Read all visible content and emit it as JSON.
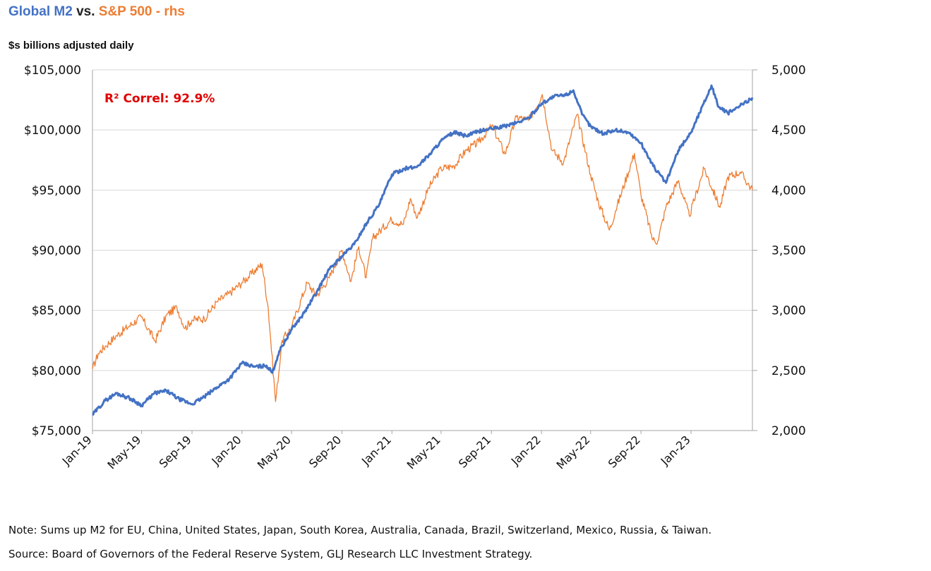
{
  "header": {
    "title_series1": "Global M2",
    "title_vs": "vs.",
    "title_series2": "S&P 500 - rhs",
    "subtitle": "$s billions adjusted daily"
  },
  "footer": {
    "note": "Note: Sums up M2 for EU, China, United States, Japan, South Korea, Australia, Canada, Brazil, Switzerland, Mexico, Russia, & Taiwan.",
    "source": "Source: Board of Governors of the Federal Reserve System, GLJ Research LLC Investment Strategy."
  },
  "chart_data": {
    "type": "line",
    "annotation": "R² Correl: 92.9%",
    "colors": {
      "m2": "#4472C4",
      "sp500": "#ED7D31",
      "annotation": "#E00000",
      "grid": "#D9D9D9",
      "axis": "#A6A6A6"
    },
    "grid": true,
    "x_axis": {
      "range": [
        "2019-01-01",
        "2023-05-31"
      ],
      "tick_labels": [
        "Jan-19",
        "May-19",
        "Sep-19",
        "Jan-20",
        "May-20",
        "Sep-20",
        "Jan-21",
        "May-21",
        "Sep-21",
        "Jan-22",
        "May-22",
        "Sep-22",
        "Jan-23"
      ],
      "tick_dates": [
        "2019-01-01",
        "2019-05-01",
        "2019-09-01",
        "2020-01-01",
        "2020-05-01",
        "2020-09-01",
        "2021-01-01",
        "2021-05-01",
        "2021-09-01",
        "2022-01-01",
        "2022-05-01",
        "2022-09-01",
        "2023-01-01"
      ]
    },
    "y_left": {
      "range": [
        75000,
        105000
      ],
      "tick_values": [
        75000,
        80000,
        85000,
        90000,
        95000,
        100000,
        105000
      ],
      "tick_labels": [
        "$75,000",
        "$80,000",
        "$85,000",
        "$90,000",
        "$95,000",
        "$100,000",
        "$105,000"
      ]
    },
    "y_right": {
      "range": [
        2000,
        5000
      ],
      "tick_values": [
        2000,
        2500,
        3000,
        3500,
        4000,
        4500,
        5000
      ],
      "tick_labels": [
        "2,000",
        "2,500",
        "3,000",
        "3,500",
        "4,000",
        "4,500",
        "5,000"
      ]
    },
    "series": [
      {
        "name": "Global M2",
        "axis": "left",
        "points": [
          [
            "2019-01-01",
            76300
          ],
          [
            "2019-02-01",
            77500
          ],
          [
            "2019-03-01",
            78100
          ],
          [
            "2019-04-01",
            77700
          ],
          [
            "2019-05-01",
            77100
          ],
          [
            "2019-06-01",
            78100
          ],
          [
            "2019-07-01",
            78300
          ],
          [
            "2019-08-01",
            77600
          ],
          [
            "2019-09-01",
            77200
          ],
          [
            "2019-10-01",
            77800
          ],
          [
            "2019-11-01",
            78600
          ],
          [
            "2019-12-01",
            79300
          ],
          [
            "2020-01-01",
            80600
          ],
          [
            "2020-02-01",
            80300
          ],
          [
            "2020-03-01",
            80400
          ],
          [
            "2020-03-15",
            79800
          ],
          [
            "2020-04-01",
            81600
          ],
          [
            "2020-05-01",
            83400
          ],
          [
            "2020-06-01",
            84800
          ],
          [
            "2020-07-01",
            86500
          ],
          [
            "2020-08-01",
            88400
          ],
          [
            "2020-09-01",
            89500
          ],
          [
            "2020-10-01",
            90500
          ],
          [
            "2020-11-01",
            92300
          ],
          [
            "2020-12-01",
            93800
          ],
          [
            "2021-01-01",
            96300
          ],
          [
            "2021-02-01",
            96800
          ],
          [
            "2021-03-01",
            96900
          ],
          [
            "2021-04-01",
            97900
          ],
          [
            "2021-05-01",
            99100
          ],
          [
            "2021-06-01",
            99800
          ],
          [
            "2021-07-01",
            99500
          ],
          [
            "2021-08-01",
            99900
          ],
          [
            "2021-09-01",
            100100
          ],
          [
            "2021-10-01",
            100300
          ],
          [
            "2021-11-01",
            100600
          ],
          [
            "2021-12-01",
            101000
          ],
          [
            "2022-01-01",
            102200
          ],
          [
            "2022-02-01",
            102800
          ],
          [
            "2022-03-01",
            102900
          ],
          [
            "2022-03-20",
            103300
          ],
          [
            "2022-04-10",
            101300
          ],
          [
            "2022-05-01",
            100300
          ],
          [
            "2022-06-01",
            99700
          ],
          [
            "2022-07-01",
            100000
          ],
          [
            "2022-08-01",
            99800
          ],
          [
            "2022-09-01",
            98900
          ],
          [
            "2022-10-01",
            97000
          ],
          [
            "2022-11-01",
            95600
          ],
          [
            "2022-12-01",
            98300
          ],
          [
            "2023-01-01",
            99800
          ],
          [
            "2023-02-01",
            102200
          ],
          [
            "2023-02-20",
            103700
          ],
          [
            "2023-03-10",
            101900
          ],
          [
            "2023-04-01",
            101400
          ],
          [
            "2023-05-01",
            102000
          ],
          [
            "2023-05-31",
            102700
          ]
        ]
      },
      {
        "name": "S&P 500",
        "axis": "right",
        "points": [
          [
            "2019-01-01",
            2510
          ],
          [
            "2019-01-15",
            2640
          ],
          [
            "2019-02-01",
            2700
          ],
          [
            "2019-03-01",
            2790
          ],
          [
            "2019-04-01",
            2870
          ],
          [
            "2019-04-30",
            2945
          ],
          [
            "2019-06-03",
            2745
          ],
          [
            "2019-07-01",
            2960
          ],
          [
            "2019-07-26",
            3025
          ],
          [
            "2019-08-15",
            2850
          ],
          [
            "2019-09-01",
            2920
          ],
          [
            "2019-10-01",
            2930
          ],
          [
            "2019-11-01",
            3070
          ],
          [
            "2019-12-01",
            3140
          ],
          [
            "2020-01-01",
            3230
          ],
          [
            "2020-02-19",
            3385
          ],
          [
            "2020-03-05",
            3020
          ],
          [
            "2020-03-23",
            2240
          ],
          [
            "2020-04-08",
            2750
          ],
          [
            "2020-05-01",
            2860
          ],
          [
            "2020-06-08",
            3230
          ],
          [
            "2020-07-01",
            3120
          ],
          [
            "2020-08-01",
            3270
          ],
          [
            "2020-09-01",
            3500
          ],
          [
            "2020-09-23",
            3240
          ],
          [
            "2020-10-12",
            3530
          ],
          [
            "2020-10-30",
            3270
          ],
          [
            "2020-11-15",
            3600
          ],
          [
            "2020-12-31",
            3756
          ],
          [
            "2021-01-29",
            3715
          ],
          [
            "2021-02-15",
            3930
          ],
          [
            "2021-03-04",
            3770
          ],
          [
            "2021-04-01",
            4020
          ],
          [
            "2021-05-01",
            4180
          ],
          [
            "2021-06-01",
            4200
          ],
          [
            "2021-07-01",
            4330
          ],
          [
            "2021-08-01",
            4400
          ],
          [
            "2021-09-02",
            4535
          ],
          [
            "2021-10-04",
            4300
          ],
          [
            "2021-11-01",
            4610
          ],
          [
            "2021-12-01",
            4580
          ],
          [
            "2022-01-03",
            4795
          ],
          [
            "2022-01-27",
            4330
          ],
          [
            "2022-02-24",
            4230
          ],
          [
            "2022-03-29",
            4630
          ],
          [
            "2022-05-01",
            4130
          ],
          [
            "2022-05-20",
            3900
          ],
          [
            "2022-06-16",
            3667
          ],
          [
            "2022-07-01",
            3830
          ],
          [
            "2022-08-16",
            4305
          ],
          [
            "2022-09-01",
            3960
          ],
          [
            "2022-09-30",
            3585
          ],
          [
            "2022-10-12",
            3577
          ],
          [
            "2022-11-01",
            3860
          ],
          [
            "2022-12-01",
            4080
          ],
          [
            "2022-12-28",
            3785
          ],
          [
            "2023-02-02",
            4180
          ],
          [
            "2023-03-13",
            3855
          ],
          [
            "2023-04-01",
            4110
          ],
          [
            "2023-05-01",
            4150
          ],
          [
            "2023-05-31",
            4000
          ]
        ]
      }
    ]
  }
}
